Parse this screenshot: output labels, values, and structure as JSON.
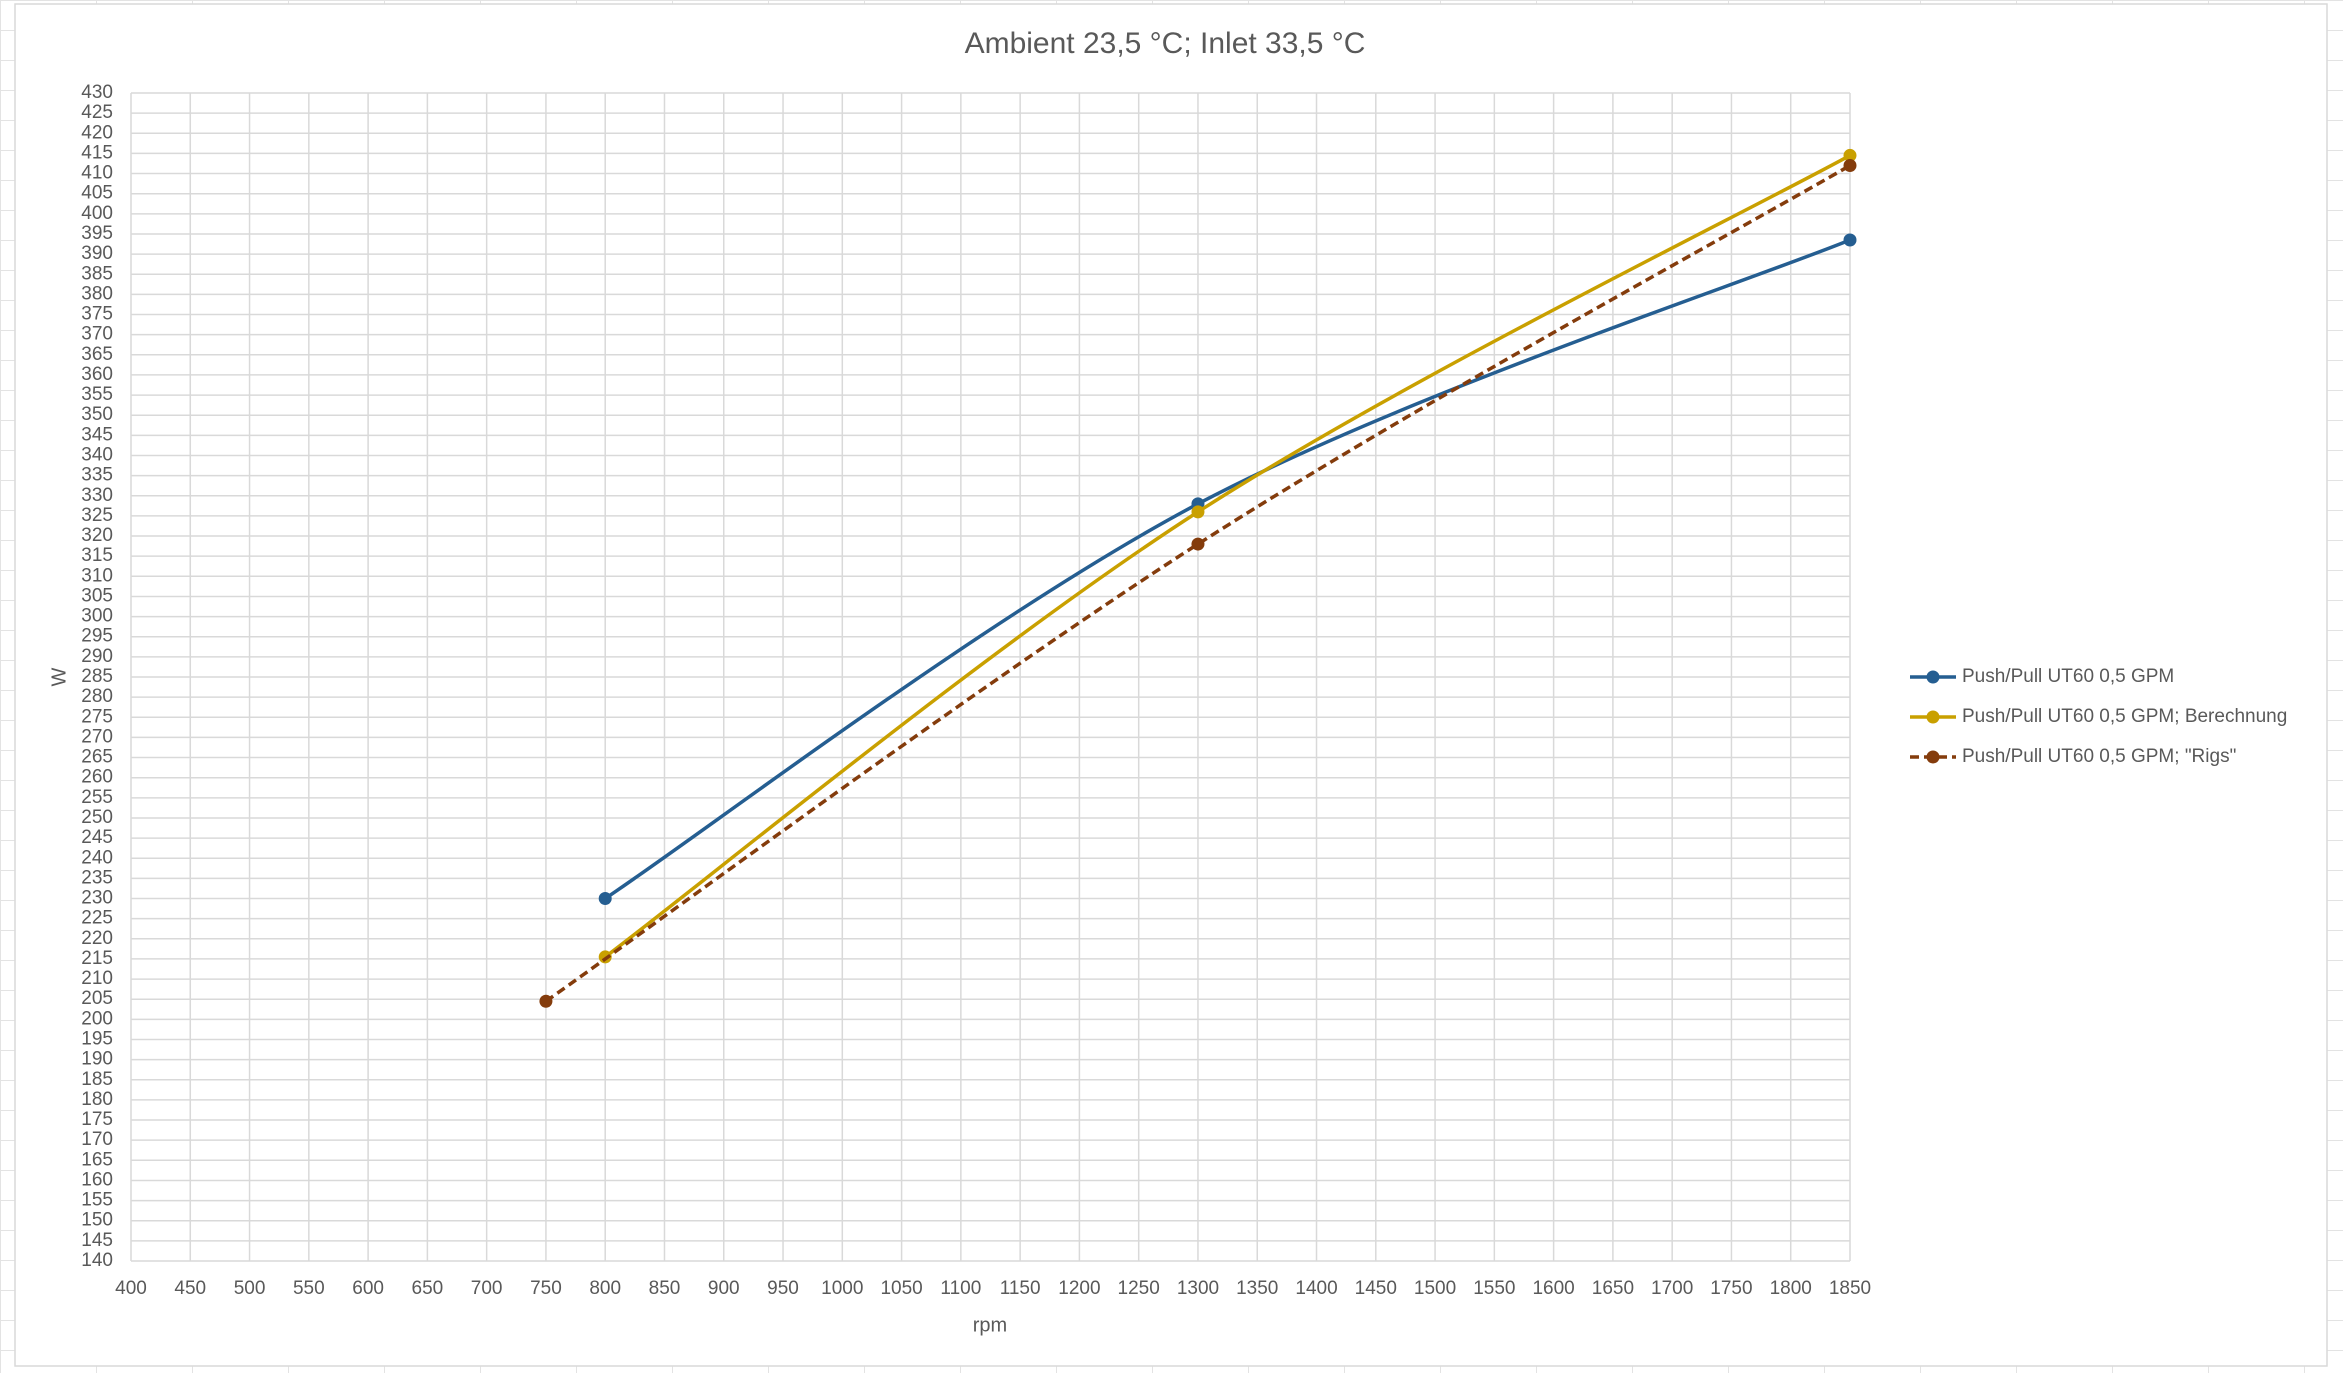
{
  "chart_data": {
    "type": "line",
    "title": "Ambient 23,5 °C; Inlet 33,5 °C",
    "x_label": "rpm",
    "y_label": "W",
    "xlim": [
      400,
      1850
    ],
    "ylim": [
      140,
      430
    ],
    "xticks": [
      400,
      450,
      500,
      550,
      600,
      650,
      700,
      750,
      800,
      850,
      900,
      950,
      1000,
      1050,
      1100,
      1150,
      1200,
      1250,
      1300,
      1350,
      1400,
      1450,
      1500,
      1550,
      1600,
      1650,
      1700,
      1750,
      1800,
      1850
    ],
    "yticks": [
      140,
      145,
      150,
      155,
      160,
      165,
      170,
      175,
      180,
      185,
      190,
      195,
      200,
      205,
      210,
      215,
      220,
      225,
      230,
      235,
      240,
      245,
      250,
      255,
      260,
      265,
      270,
      275,
      280,
      285,
      290,
      295,
      300,
      305,
      310,
      315,
      320,
      325,
      330,
      335,
      340,
      345,
      350,
      355,
      360,
      365,
      370,
      375,
      380,
      385,
      390,
      395,
      400,
      405,
      410,
      415,
      420,
      425,
      430
    ],
    "grid": true,
    "smooth": true,
    "legend": "right",
    "series": [
      {
        "name": "Push/Pull UT60 0,5 GPM",
        "color": "#255e91",
        "dashed": false,
        "x": [
          800,
          1300,
          1850
        ],
        "values": [
          230,
          328,
          393.5
        ]
      },
      {
        "name": "Push/Pull UT60 0,5 GPM; Berechnung",
        "color": "#c9a000",
        "dashed": false,
        "x": [
          800,
          1300,
          1850
        ],
        "values": [
          215.5,
          326,
          414.5
        ]
      },
      {
        "name": "Push/Pull UT60 0,5 GPM; \"Rigs\"",
        "color": "#843c0c",
        "dashed": true,
        "x": [
          750,
          1300,
          1850
        ],
        "values": [
          204.5,
          318,
          412
        ]
      }
    ]
  }
}
